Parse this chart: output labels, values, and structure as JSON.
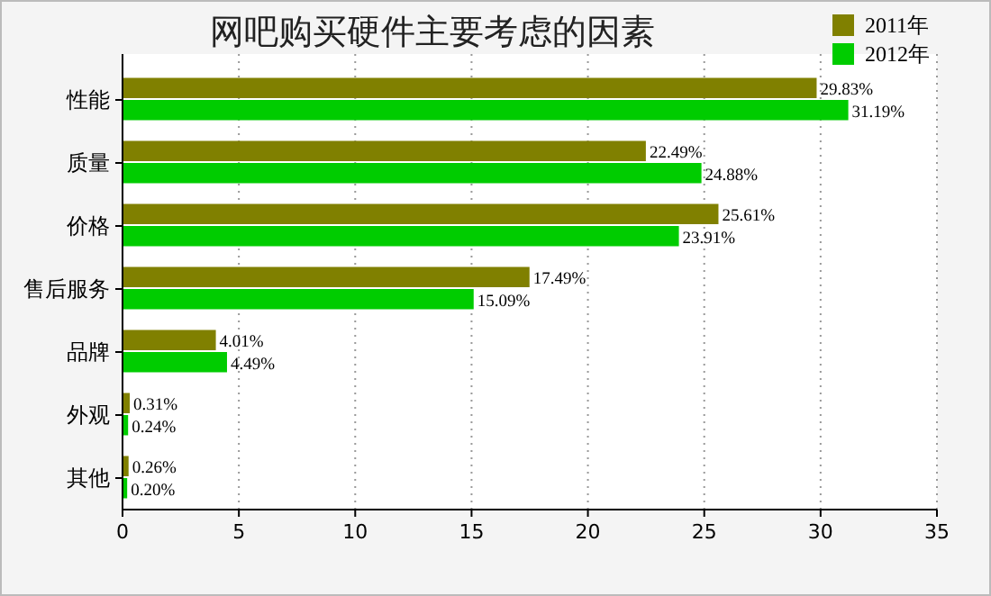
{
  "chart_data": {
    "type": "bar",
    "orientation": "horizontal",
    "title": "网吧购买硬件主要考虑的因素",
    "categories": [
      "性能",
      "质量",
      "价格",
      "售后服务",
      "品牌",
      "外观",
      "其他"
    ],
    "series": [
      {
        "name": "2011年",
        "color": "#808000",
        "values": [
          29.83,
          22.49,
          25.61,
          17.49,
          4.01,
          0.31,
          0.26
        ],
        "value_labels": [
          "29.83%",
          "22.49%",
          "25.61%",
          "17.49%",
          "4.01%",
          "0.31%",
          "0.26%"
        ]
      },
      {
        "name": "2012年",
        "color": "#00cc00",
        "values": [
          31.19,
          24.88,
          23.91,
          15.09,
          4.49,
          0.24,
          0.2
        ],
        "value_labels": [
          "31.19%",
          "24.88%",
          "23.91%",
          "15.09%",
          "4.49%",
          "0.24%",
          "0.20%"
        ]
      }
    ],
    "xlim": [
      0,
      35
    ],
    "xticks": [
      0,
      5,
      10,
      15,
      20,
      25,
      30,
      35
    ],
    "grid": "x",
    "legend": "top right"
  }
}
